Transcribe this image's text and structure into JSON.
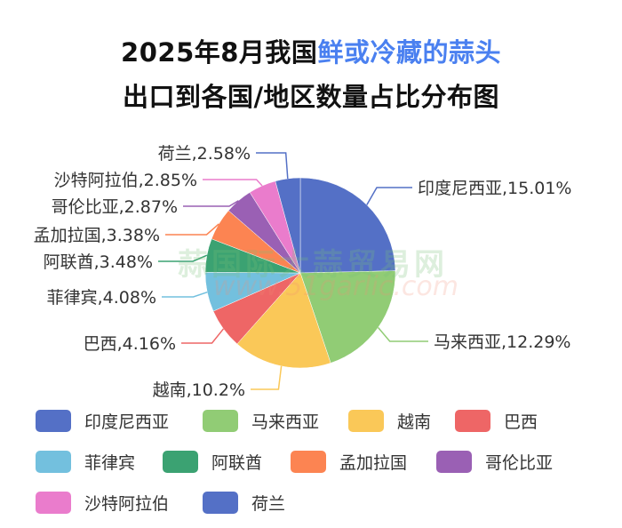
{
  "title": {
    "part1": "2025年8月我国",
    "highlight": "鲜或冷藏的蒜头",
    "line2": "出口到各国/地区数量占比分布图",
    "highlight_color": "#4a80f0"
  },
  "watermark": {
    "line1": "蒜国际大蒜贸易网",
    "line2": "www.51garlic.com"
  },
  "chart_data": {
    "type": "pie",
    "start": "top",
    "direction": "clockwise",
    "legend_position": "bottom",
    "slices": [
      {
        "name": "印度尼西亚",
        "value": 15.01,
        "label": "印度尼西亚,15.01%",
        "color": "#5470c6"
      },
      {
        "name": "马来西亚",
        "value": 12.29,
        "label": "马来西亚,12.29%",
        "color": "#91cc75"
      },
      {
        "name": "越南",
        "value": 10.2,
        "label": "越南,10.2%",
        "color": "#fac858"
      },
      {
        "name": "巴西",
        "value": 4.16,
        "label": "巴西,4.16%",
        "color": "#ee6666"
      },
      {
        "name": "菲律宾",
        "value": 4.08,
        "label": "菲律宾,4.08%",
        "color": "#73c0de"
      },
      {
        "name": "阿联酋",
        "value": 3.48,
        "label": "阿联酋,3.48%",
        "color": "#3ba272"
      },
      {
        "name": "孟加拉国",
        "value": 3.38,
        "label": "孟加拉国,3.38%",
        "color": "#fc8452"
      },
      {
        "name": "哥伦比亚",
        "value": 2.87,
        "label": "哥伦比亚,2.87%",
        "color": "#9a60b4"
      },
      {
        "name": "沙特阿拉伯",
        "value": 2.85,
        "label": "沙特阿拉伯,2.85%",
        "color": "#ea7ccc"
      },
      {
        "name": "荷兰",
        "value": 2.58,
        "label": "荷兰,2.58%",
        "color": "#5470c6"
      }
    ]
  }
}
